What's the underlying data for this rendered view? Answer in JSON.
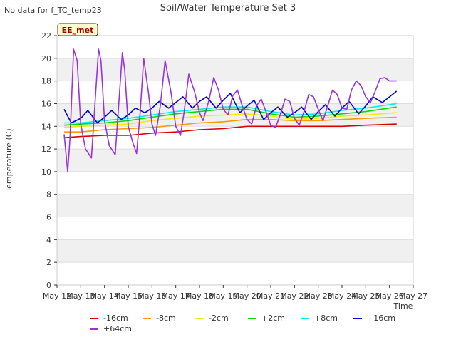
{
  "corner_note": "No data for f_TC_temp23",
  "badge": "EE_met",
  "chart_data": {
    "type": "line",
    "title": "Soil/Water Temperature Set 3",
    "xlabel": "Time",
    "ylabel": "Temperature (C)",
    "xlim": [
      12,
      27
    ],
    "ylim": [
      0,
      22
    ],
    "x_ticks": [
      "May 12",
      "May 13",
      "May 14",
      "May 15",
      "May 16",
      "May 17",
      "May 18",
      "May 19",
      "May 20",
      "May 21",
      "May 22",
      "May 23",
      "May 24",
      "May 25",
      "May 26",
      "May 27"
    ],
    "y_ticks": [
      0,
      2,
      4,
      6,
      8,
      10,
      12,
      14,
      16,
      18,
      20,
      22
    ],
    "grid": true,
    "legend_position": "bottom",
    "series": [
      {
        "name": "-16cm",
        "color": "#dd0000",
        "x": [
          12.3,
          13,
          14,
          15,
          16,
          17,
          18,
          19,
          20,
          21,
          22,
          23,
          24,
          25,
          26.3
        ],
        "y": [
          13.0,
          13.1,
          13.2,
          13.2,
          13.4,
          13.5,
          13.7,
          13.8,
          14.0,
          14.0,
          14.0,
          14.0,
          14.0,
          14.1,
          14.2
        ]
      },
      {
        "name": "-8cm",
        "color": "#ff9900",
        "x": [
          12.3,
          13,
          14,
          15,
          16,
          17,
          18,
          19,
          20,
          21,
          22,
          23,
          24,
          25,
          26.3
        ],
        "y": [
          13.5,
          13.5,
          13.7,
          13.8,
          13.9,
          14.1,
          14.3,
          14.4,
          14.6,
          14.6,
          14.5,
          14.5,
          14.6,
          14.7,
          14.8
        ]
      },
      {
        "name": "-2cm",
        "color": "#eeee00",
        "x": [
          12.3,
          13,
          14,
          15,
          16,
          17,
          18,
          19,
          20,
          21,
          22,
          23,
          24,
          25,
          26.3
        ],
        "y": [
          13.9,
          14.0,
          14.1,
          14.2,
          14.5,
          14.7,
          14.9,
          15.0,
          15.1,
          14.9,
          14.6,
          14.7,
          14.9,
          15.0,
          15.2
        ]
      },
      {
        "name": "+2cm",
        "color": "#00dd00",
        "x": [
          12.3,
          13,
          14,
          15,
          16,
          17,
          18,
          19,
          20,
          21,
          22,
          23,
          24,
          25,
          26.3
        ],
        "y": [
          14.1,
          14.2,
          14.3,
          14.5,
          14.8,
          15.1,
          15.3,
          15.5,
          15.5,
          15.1,
          14.8,
          14.9,
          15.1,
          15.3,
          15.7
        ]
      },
      {
        "name": "+8cm",
        "color": "#00eeee",
        "x": [
          12.3,
          13,
          14,
          15,
          16,
          17,
          18,
          19,
          20,
          21,
          22,
          23,
          24,
          25,
          26.3
        ],
        "y": [
          14.3,
          14.3,
          14.5,
          14.7,
          15.0,
          15.3,
          15.5,
          15.7,
          15.7,
          15.3,
          15.0,
          15.1,
          15.4,
          15.6,
          16.0
        ]
      },
      {
        "name": "+16cm",
        "color": "#0000cc",
        "x": [
          12.3,
          12.6,
          13,
          13.3,
          13.7,
          14,
          14.3,
          14.7,
          15,
          15.3,
          15.7,
          16,
          16.3,
          16.7,
          17,
          17.3,
          17.7,
          18,
          18.3,
          18.7,
          19,
          19.3,
          19.7,
          20,
          20.3,
          20.7,
          21,
          21.3,
          21.7,
          22,
          22.3,
          22.7,
          23,
          23.3,
          23.7,
          24,
          24.3,
          24.7,
          25,
          25.3,
          25.7,
          26,
          26.3
        ],
        "y": [
          15.5,
          14.3,
          14.7,
          15.4,
          14.3,
          14.8,
          15.4,
          14.6,
          15.0,
          15.6,
          15.2,
          15.6,
          16.2,
          15.6,
          16.1,
          16.6,
          15.6,
          16.2,
          16.6,
          15.6,
          16.3,
          16.9,
          15.2,
          15.8,
          16.3,
          14.6,
          15.2,
          15.7,
          14.8,
          15.2,
          15.7,
          14.6,
          15.3,
          15.9,
          14.9,
          15.6,
          16.2,
          15.1,
          15.8,
          16.6,
          16.1,
          16.6,
          17.1
        ]
      },
      {
        "name": "+64cm",
        "color": "#9933dd",
        "x": [
          12.3,
          12.45,
          12.55,
          12.7,
          12.85,
          13.0,
          13.2,
          13.45,
          13.6,
          13.75,
          13.85,
          14.0,
          14.2,
          14.45,
          14.6,
          14.75,
          14.85,
          15.0,
          15.2,
          15.35,
          15.5,
          15.65,
          15.85,
          16.0,
          16.15,
          16.35,
          16.55,
          16.8,
          17.0,
          17.2,
          17.35,
          17.55,
          17.8,
          18.0,
          18.15,
          18.4,
          18.6,
          18.8,
          19.0,
          19.2,
          19.4,
          19.6,
          19.8,
          20.0,
          20.2,
          20.4,
          20.6,
          20.8,
          21.0,
          21.2,
          21.4,
          21.6,
          21.8,
          22.0,
          22.2,
          22.4,
          22.6,
          22.8,
          23.0,
          23.2,
          23.4,
          23.6,
          23.8,
          24.0,
          24.2,
          24.4,
          24.6,
          24.8,
          25.0,
          25.2,
          25.4,
          25.6,
          25.8,
          26.0,
          26.2,
          26.3
        ],
        "y": [
          13.3,
          10.0,
          13.0,
          20.8,
          19.8,
          14.2,
          12.0,
          11.2,
          16.0,
          20.8,
          19.8,
          14.5,
          12.3,
          11.5,
          16.0,
          20.5,
          19.0,
          14.0,
          12.5,
          11.6,
          15.2,
          20.0,
          17.0,
          14.2,
          13.2,
          15.8,
          19.8,
          17.0,
          14.0,
          13.2,
          15.2,
          18.6,
          17.0,
          15.2,
          14.5,
          16.3,
          18.3,
          17.2,
          15.5,
          15.0,
          16.7,
          17.2,
          15.8,
          14.6,
          14.2,
          15.8,
          16.4,
          15.3,
          14.1,
          13.9,
          15.0,
          16.4,
          16.2,
          14.7,
          14.1,
          15.3,
          16.8,
          16.6,
          15.5,
          14.5,
          15.8,
          17.2,
          16.8,
          15.6,
          15.5,
          17.2,
          18.0,
          17.6,
          16.6,
          16.1,
          17.1,
          18.2,
          18.3,
          18.0,
          18.0,
          18.0
        ]
      }
    ]
  }
}
